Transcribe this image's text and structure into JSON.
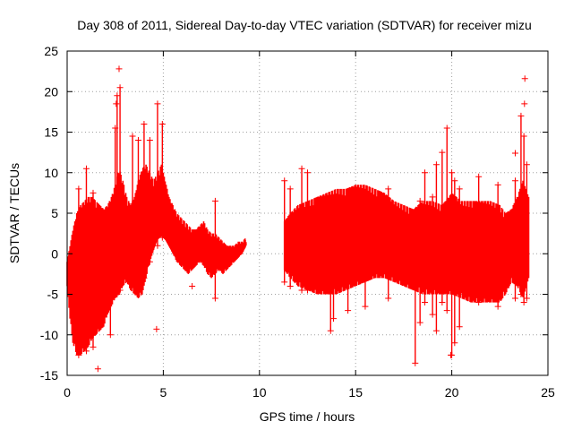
{
  "chart_data": {
    "type": "scatter",
    "title": "Day 308 of 2011, Sidereal Day-to-day VTEC variation (SDTVAR) for receiver mizu",
    "xlabel": "GPS time / hours",
    "ylabel": "SDTVAR / TECUs",
    "xlim": [
      0,
      25
    ],
    "ylim": [
      -15,
      25
    ],
    "xticks": [
      0,
      5,
      10,
      15,
      20,
      25
    ],
    "yticks": [
      -15,
      -10,
      -5,
      0,
      5,
      10,
      15,
      20,
      25
    ],
    "grid": true,
    "marker": "+",
    "series": [
      {
        "name": "SDTVAR",
        "color": "#ff0000",
        "x_step": 0.05,
        "envelope_segments": [
          {
            "x": [
              0.0,
              0.15,
              0.3,
              0.5,
              0.7,
              0.9,
              1.1,
              1.3,
              1.5,
              1.7,
              1.9,
              2.1,
              2.3,
              2.5,
              2.7,
              2.9,
              3.1,
              3.3,
              3.5,
              3.7,
              3.9,
              4.1,
              4.3,
              4.5,
              4.7,
              4.9,
              5.1,
              5.3,
              5.5,
              5.7,
              5.9,
              6.1,
              6.3,
              6.5,
              6.7,
              6.9,
              7.1,
              7.3,
              7.5,
              7.7,
              7.9,
              8.1,
              8.3,
              8.5,
              8.7,
              8.9,
              9.1,
              9.3
            ],
            "upper": [
              -1.0,
              1.0,
              3.0,
              5.0,
              6.0,
              6.5,
              7.0,
              7.0,
              6.5,
              6.0,
              5.5,
              6.0,
              7.0,
              8.5,
              10.5,
              9.0,
              7.0,
              6.0,
              7.0,
              9.0,
              10.5,
              11.0,
              10.0,
              9.0,
              10.0,
              11.0,
              9.0,
              7.0,
              6.0,
              5.0,
              4.5,
              4.0,
              3.5,
              3.0,
              3.0,
              3.5,
              4.0,
              3.0,
              2.5,
              2.5,
              2.0,
              1.5,
              1.0,
              1.0,
              1.0,
              1.5,
              1.5,
              2.0
            ],
            "lower": [
              -4.0,
              -8.0,
              -11.0,
              -12.5,
              -12.5,
              -12.0,
              -11.5,
              -10.5,
              -10.0,
              -9.5,
              -9.0,
              -7.5,
              -6.5,
              -5.5,
              -5.0,
              -4.0,
              -3.5,
              -4.5,
              -5.0,
              -5.5,
              -5.0,
              -3.0,
              -1.0,
              0.5,
              2.0,
              2.5,
              2.0,
              1.0,
              0.0,
              -1.0,
              -1.5,
              -2.0,
              -2.5,
              -2.0,
              -1.5,
              -1.0,
              -1.5,
              -2.5,
              -3.0,
              -2.5,
              -2.0,
              -2.5,
              -2.0,
              -1.5,
              -1.0,
              -0.5,
              0.0,
              1.0
            ]
          },
          {
            "x": [
              11.3,
              11.6,
              12.0,
              12.5,
              13.0,
              13.5,
              14.0,
              14.5,
              15.0,
              15.5,
              16.0,
              16.5,
              17.0,
              17.5,
              18.0,
              18.5,
              19.0,
              19.5,
              20.0,
              20.5,
              21.0,
              21.5,
              22.0,
              22.5,
              22.8,
              23.1,
              23.4,
              23.7,
              24.0
            ],
            "upper": [
              4.0,
              5.0,
              6.0,
              6.5,
              7.0,
              7.5,
              8.0,
              8.0,
              8.5,
              8.5,
              8.0,
              7.5,
              6.5,
              6.0,
              5.5,
              6.5,
              6.5,
              6.0,
              7.5,
              6.5,
              6.5,
              6.5,
              6.5,
              6.0,
              5.0,
              5.5,
              7.0,
              9.0,
              7.0
            ],
            "lower": [
              -2.0,
              -3.0,
              -4.0,
              -4.5,
              -5.0,
              -5.0,
              -5.0,
              -4.5,
              -4.0,
              -3.5,
              -3.0,
              -3.0,
              -3.5,
              -4.0,
              -4.5,
              -5.0,
              -5.0,
              -5.0,
              -5.0,
              -5.5,
              -6.0,
              -6.0,
              -6.0,
              -6.0,
              -5.0,
              -3.5,
              -4.0,
              -5.5,
              -3.0
            ]
          }
        ],
        "spikes": [
          {
            "x": 0.6,
            "y_top": 8.0,
            "y_bottom": -12.5
          },
          {
            "x": 1.0,
            "y_top": 10.5,
            "y_bottom": -12.0
          },
          {
            "x": 1.35,
            "y_top": 7.5,
            "y_bottom": -11.5
          },
          {
            "x": 2.25,
            "y_top": 5.0,
            "y_bottom": -10.0
          },
          {
            "x": 2.5,
            "y_top": 15.5,
            "y_bottom": -5.0
          },
          {
            "x": 2.6,
            "y_top": 19.5,
            "y_bottom": -5.0
          },
          {
            "x": 2.75,
            "y_top": 20.5,
            "y_bottom": -4.5
          },
          {
            "x": 3.4,
            "y_top": 14.5,
            "y_bottom": -3.0
          },
          {
            "x": 3.7,
            "y_top": 14.0,
            "y_bottom": -3.5
          },
          {
            "x": 4.0,
            "y_top": 16.0,
            "y_bottom": -3.0
          },
          {
            "x": 4.3,
            "y_top": 14.0,
            "y_bottom": -1.0
          },
          {
            "x": 4.7,
            "y_top": 18.5,
            "y_bottom": 1.0
          },
          {
            "x": 4.95,
            "y_top": 16.0,
            "y_bottom": 2.0
          },
          {
            "x": 7.7,
            "y_top": 6.5,
            "y_bottom": -5.5
          },
          {
            "x": 11.3,
            "y_top": 9.0,
            "y_bottom": -3.5
          },
          {
            "x": 11.6,
            "y_top": 8.0,
            "y_bottom": -4.0
          },
          {
            "x": 12.2,
            "y_top": 10.5,
            "y_bottom": -4.5
          },
          {
            "x": 12.5,
            "y_top": 10.0,
            "y_bottom": -4.5
          },
          {
            "x": 13.7,
            "y_top": 3.0,
            "y_bottom": -9.5
          },
          {
            "x": 13.85,
            "y_top": 4.0,
            "y_bottom": -8.0
          },
          {
            "x": 14.6,
            "y_top": 5.0,
            "y_bottom": -7.0
          },
          {
            "x": 15.5,
            "y_top": 7.0,
            "y_bottom": -6.5
          },
          {
            "x": 16.7,
            "y_top": 8.0,
            "y_bottom": -5.5
          },
          {
            "x": 18.1,
            "y_top": 5.0,
            "y_bottom": -13.5
          },
          {
            "x": 18.35,
            "y_top": 6.5,
            "y_bottom": -8.5
          },
          {
            "x": 18.6,
            "y_top": 10.0,
            "y_bottom": -6.0
          },
          {
            "x": 19.0,
            "y_top": 7.0,
            "y_bottom": -7.5
          },
          {
            "x": 19.2,
            "y_top": 11.0,
            "y_bottom": -9.5
          },
          {
            "x": 19.5,
            "y_top": 12.5,
            "y_bottom": -6.0
          },
          {
            "x": 19.75,
            "y_top": 15.5,
            "y_bottom": -7.0
          },
          {
            "x": 20.0,
            "y_top": 10.0,
            "y_bottom": -12.5
          },
          {
            "x": 20.15,
            "y_top": 9.0,
            "y_bottom": -11.0
          },
          {
            "x": 20.4,
            "y_top": 8.0,
            "y_bottom": -9.0
          },
          {
            "x": 21.4,
            "y_top": 9.5,
            "y_bottom": -6.0
          },
          {
            "x": 22.4,
            "y_top": 8.5,
            "y_bottom": -6.5
          },
          {
            "x": 23.3,
            "y_top": 9.0,
            "y_bottom": -5.5
          },
          {
            "x": 23.6,
            "y_top": 17.0,
            "y_bottom": -5.0
          },
          {
            "x": 23.75,
            "y_top": 14.5,
            "y_bottom": -6.0
          },
          {
            "x": 23.9,
            "y_top": 11.0,
            "y_bottom": -5.5
          }
        ],
        "outliers": [
          {
            "x": 2.7,
            "y": 22.8
          },
          {
            "x": 1.6,
            "y": -14.2
          },
          {
            "x": 4.65,
            "y": -9.3
          },
          {
            "x": 6.5,
            "y": -4.0
          },
          {
            "x": 23.3,
            "y": 12.4
          },
          {
            "x": 23.8,
            "y": 21.6
          },
          {
            "x": 23.78,
            "y": 18.5
          },
          {
            "x": 2.55,
            "y": 18.5
          },
          {
            "x": 19.95,
            "y": -12.5
          }
        ]
      }
    ]
  }
}
